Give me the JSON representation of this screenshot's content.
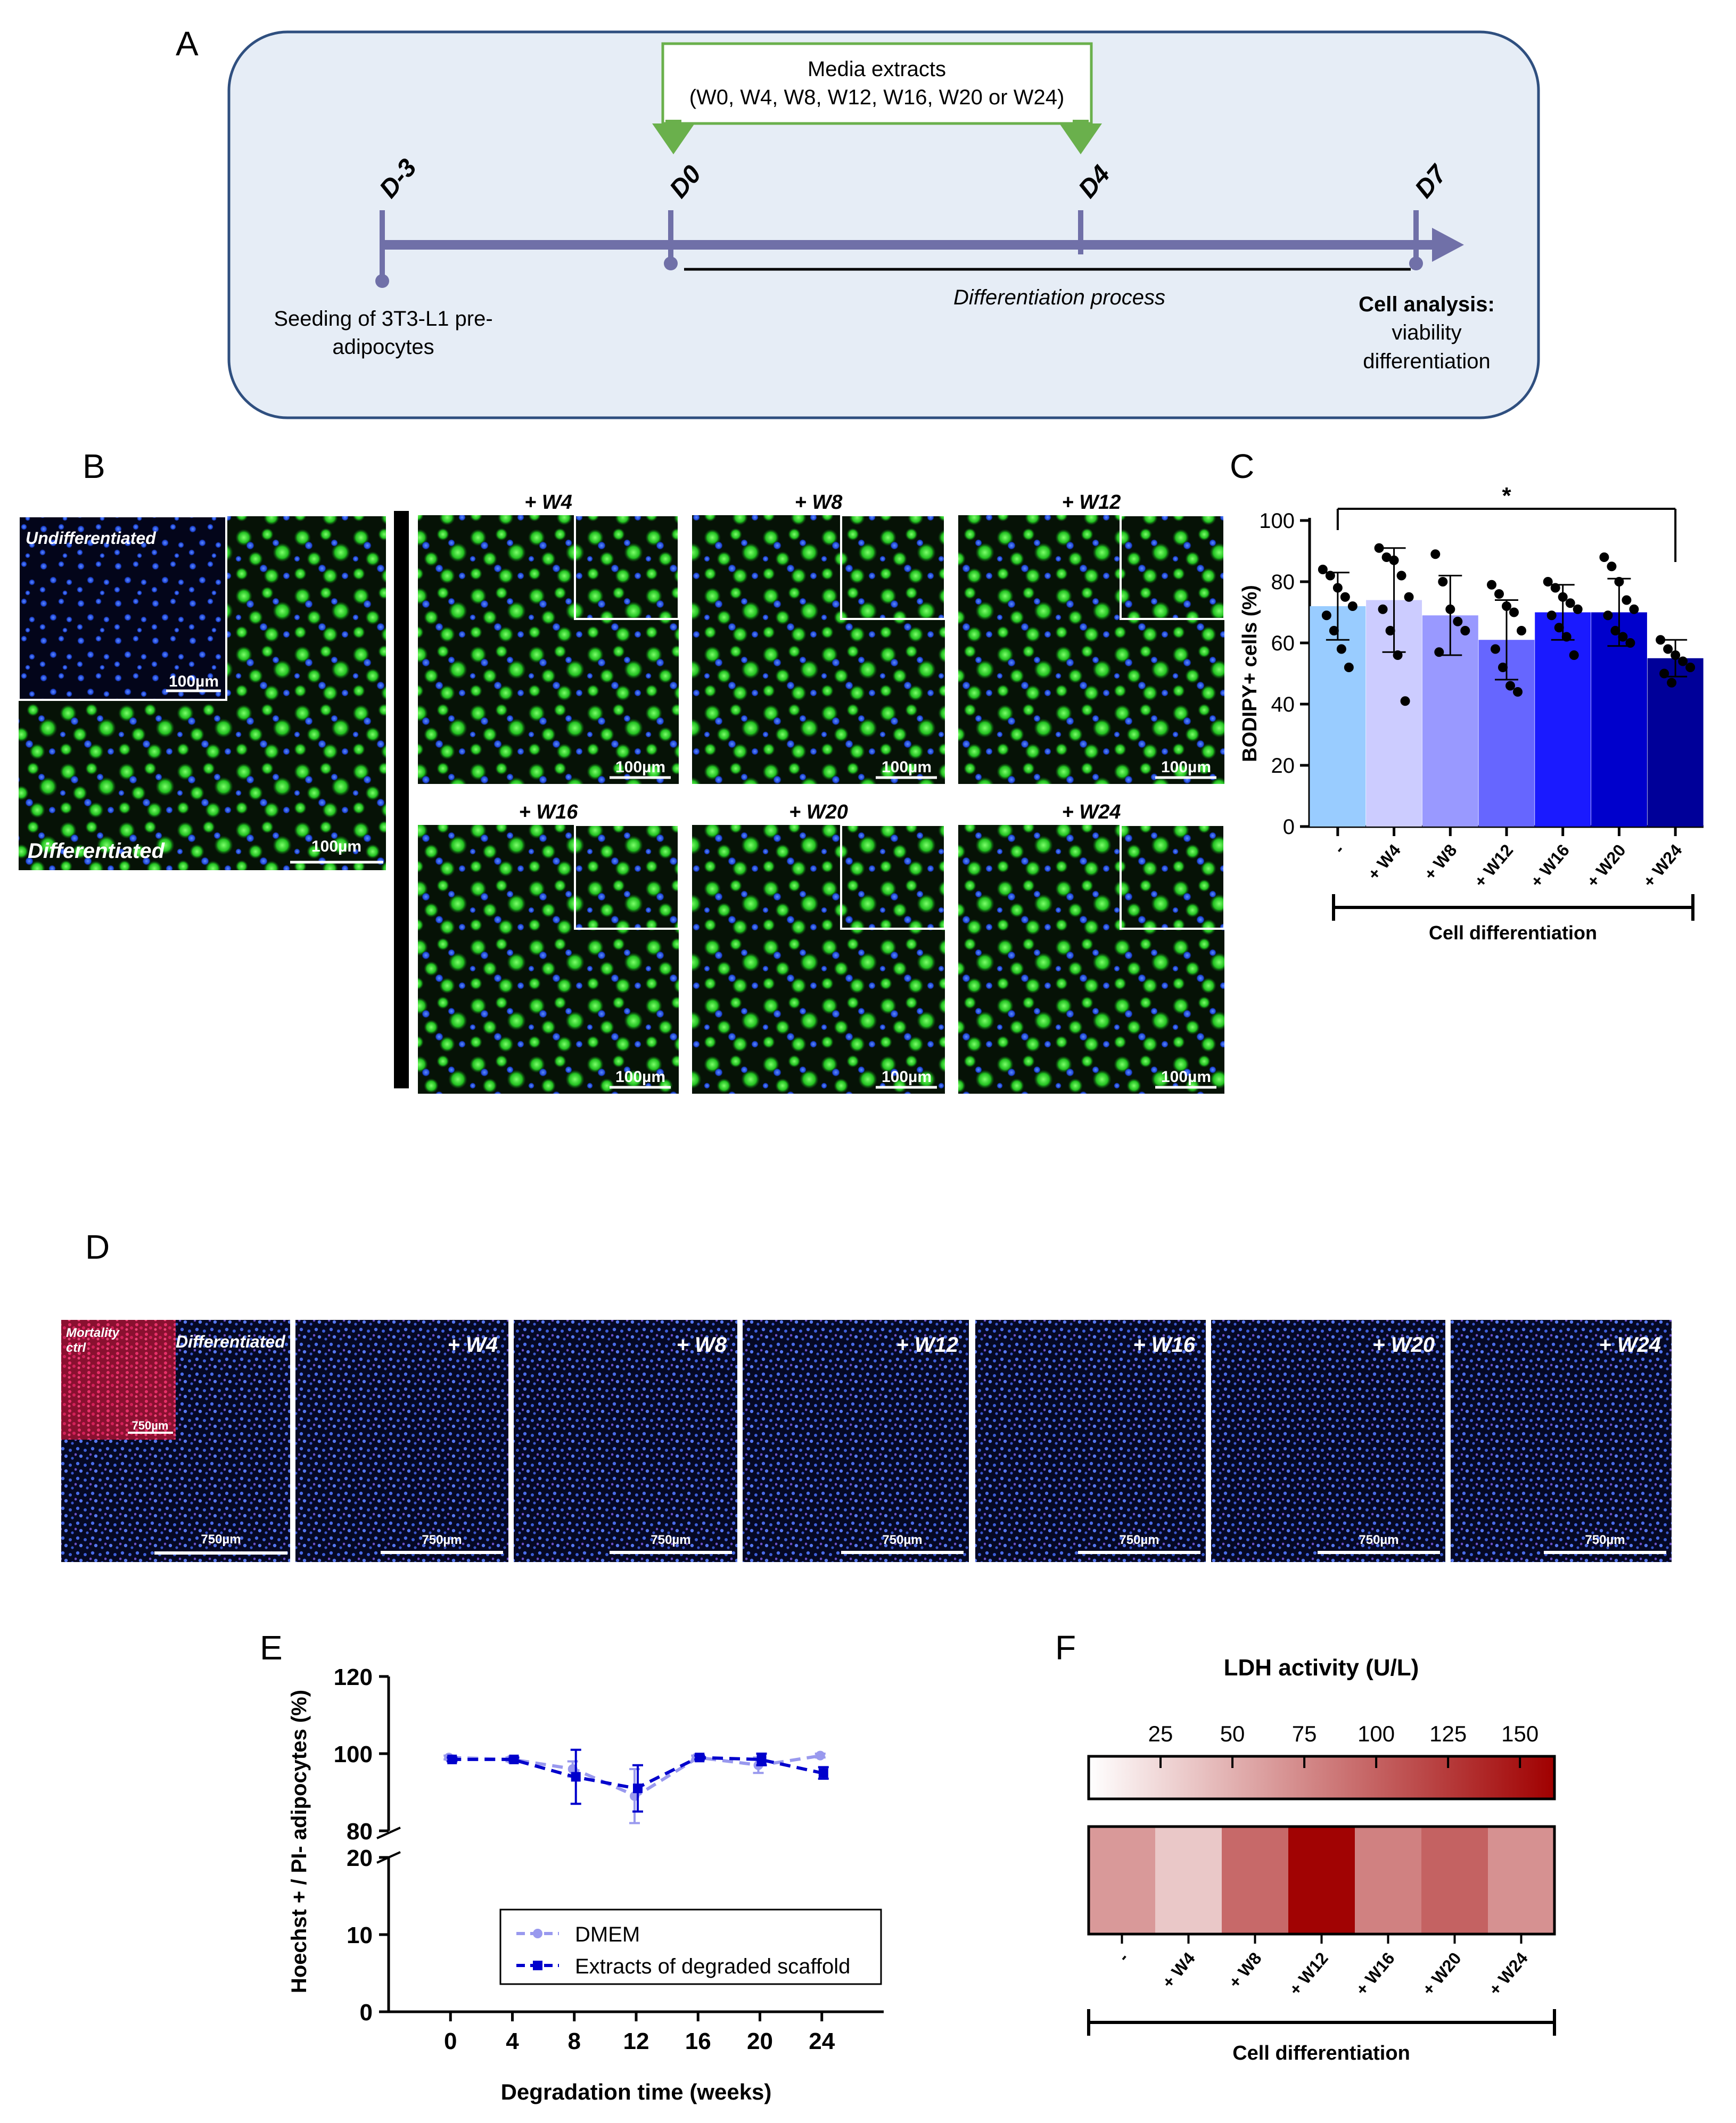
{
  "panel_letters": [
    "A",
    "B",
    "C",
    "D",
    "E",
    "F"
  ],
  "timeline": {
    "media_box": {
      "line1": "Media extracts",
      "line2": "(W0, W4, W8, W12, W16, W20 or W24)"
    },
    "days": [
      "D-3",
      "D0",
      "D4",
      "D7"
    ],
    "seeding_line1": "Seeding of 3T3-L1 pre-",
    "seeding_line2": "adipocytes",
    "process_label": "Differentiation process",
    "analysis_title": "Cell analysis:",
    "analysis_line2": "viability",
    "analysis_line3": "differentiation"
  },
  "micrographs_b": {
    "undiff_label": "Undifferentiated",
    "diff_label": "Differentiated",
    "scale": "100µm",
    "panel_labels": [
      "+ W4",
      "+ W8",
      "+ W12",
      "+ W16",
      "+ W20",
      "+ W24"
    ]
  },
  "micrographs_d": {
    "mortality_label_line1": "Mortality",
    "mortality_label_line2": "ctrl",
    "diff_label": "Differentiated",
    "scale": "750µm",
    "panel_labels": [
      "+ W4",
      "+ W8",
      "+ W12",
      "+ W16",
      "+ W20",
      "+ W24"
    ]
  },
  "chart_data": [
    {
      "id": "C",
      "type": "bar",
      "ylabel": "BODIPY+ cells (%)",
      "xlabel": "Cell differentiation",
      "categories": [
        "-",
        "+ W4",
        "+ W8",
        "+ W12",
        "+ W16",
        "+ W20",
        "+ W24"
      ],
      "values": [
        72,
        74,
        69,
        61,
        70,
        70,
        55
      ],
      "errors": [
        11,
        17,
        13,
        13,
        9,
        11,
        6
      ],
      "colors": [
        "#99CCFF",
        "#CCCCFF",
        "#9999FF",
        "#6666FF",
        "#1A1AFF",
        "#0000CC",
        "#000099"
      ],
      "points": [
        [
          84,
          82,
          78,
          75,
          72,
          69,
          64,
          58,
          52
        ],
        [
          91,
          88,
          87,
          82,
          75,
          71,
          64,
          56,
          41
        ],
        [
          89,
          80,
          71,
          67,
          64,
          57
        ],
        [
          79,
          76,
          72,
          70,
          64,
          58,
          52,
          46,
          44
        ],
        [
          80,
          78,
          75,
          73,
          71,
          69,
          65,
          62,
          56
        ],
        [
          88,
          85,
          80,
          74,
          71,
          69,
          64,
          62,
          60
        ],
        [
          61,
          58,
          56,
          54,
          52,
          50,
          47
        ]
      ],
      "ylim": [
        0,
        100
      ],
      "yticks": [
        0,
        20,
        40,
        60,
        80,
        100
      ],
      "significance": {
        "from": "-",
        "to": "+ W24",
        "label": "*"
      }
    },
    {
      "id": "E",
      "type": "line",
      "ylabel": "Hoechst + / PI- adipocytes (%)",
      "xlabel": "Degradation time (weeks)",
      "x": [
        0,
        4,
        8,
        12,
        16,
        20,
        24
      ],
      "series": [
        {
          "name": "DMEM",
          "values": [
            99,
            98.5,
            96,
            89,
            99,
            97,
            99.5
          ],
          "errors": [
            0.5,
            0.5,
            2,
            7,
            0.5,
            2,
            0.5
          ],
          "color": "#9999EE"
        },
        {
          "name": "Extracts of degraded scaffold",
          "values": [
            98.5,
            98.5,
            94,
            91,
            99,
            98.5,
            95
          ],
          "errors": [
            0.5,
            0.5,
            7,
            6,
            0.5,
            1.5,
            1.5
          ],
          "color": "#0000CC"
        }
      ],
      "yticks_upper": [
        80,
        100,
        120
      ],
      "yticks_lower": [
        0,
        10,
        20
      ],
      "y_axis_break": [
        20,
        80
      ],
      "xticks": [
        0,
        4,
        8,
        12,
        16,
        20,
        24
      ],
      "legend": "bottom-right"
    },
    {
      "id": "F",
      "type": "heatmap",
      "title": "LDH activity (U/L)",
      "xlabel": "Cell differentiation",
      "categories": [
        "-",
        "+ W4",
        "+ W8",
        "+ W12",
        "+ W16",
        "+ W20",
        "+ W24"
      ],
      "values": [
        65,
        35,
        95,
        160,
        80,
        100,
        70
      ],
      "scale_ticks": [
        25,
        50,
        75,
        100,
        125,
        150
      ],
      "scale_range": [
        0,
        162
      ],
      "color_low": "#FFFFFF",
      "color_high": "#A00000"
    }
  ]
}
